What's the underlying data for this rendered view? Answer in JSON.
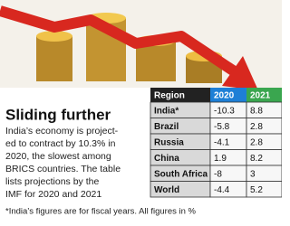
{
  "headline": "Sliding further",
  "body_lines": [
    "India’s economy is project-",
    "ed to contract by 10.3% in",
    "2020, the slowest among",
    "BRICS countries. The table",
    "lists projections by the",
    "IMF for 2020 and 2021"
  ],
  "table": {
    "header": [
      "Region",
      "2020",
      "2021"
    ],
    "rows": [
      [
        "India*",
        -10.3,
        8.8
      ],
      [
        "Brazil",
        -5.8,
        2.8
      ],
      [
        "Russia",
        -4.1,
        2.8
      ],
      [
        "China",
        1.9,
        8.2
      ],
      [
        "South Africa",
        -8,
        3
      ],
      [
        "World",
        -4.4,
        5.2
      ]
    ]
  },
  "footnote": "*India’s figures are for fiscal years. All figures in %"
}
